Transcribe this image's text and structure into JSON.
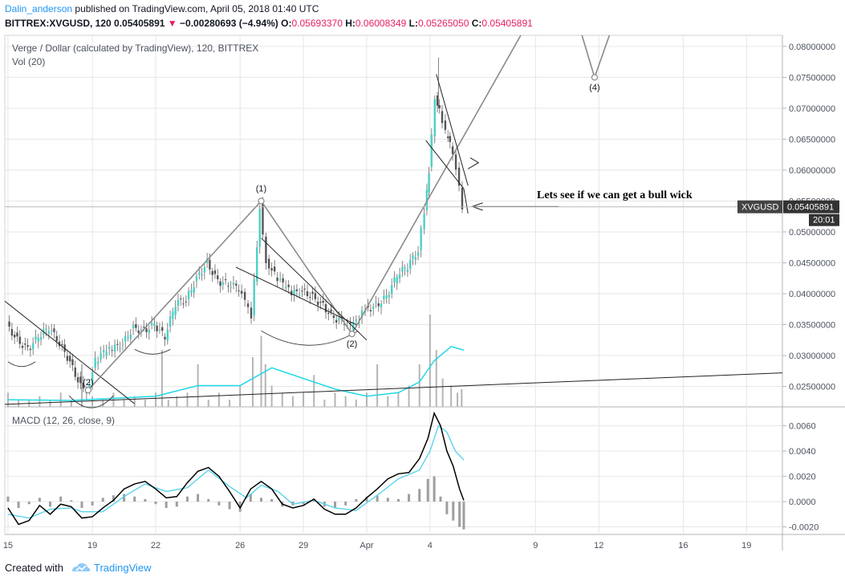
{
  "header": {
    "author": "Dalin_anderson",
    "published": "published on TradingView.com, April 05, 2018 01:40 UTC",
    "symbol": "BITTREX:XVGUSD, 120",
    "last": "0.05405891",
    "arrow": "▼",
    "change": "−0.00280693 (−4.94%)",
    "o_label": "O:",
    "o": "0.05693370",
    "h_label": "H:",
    "h": "0.06008349",
    "l_label": "L:",
    "l": "0.05265050",
    "c_label": "C:",
    "c": "0.05405891"
  },
  "chart_data": {
    "type": "candlestick",
    "title": "Verge / Dollar (calculated by TradingView), 120, BITTREX",
    "volume_label": "Vol (20)",
    "y_ticks": [
      "0.08000000",
      "0.07500000",
      "0.07000000",
      "0.06500000",
      "0.06000000",
      "0.05500000",
      "0.05000000",
      "0.04500000",
      "0.04000000",
      "0.03500000",
      "0.03000000",
      "0.02500000"
    ],
    "ylim": [
      0.0217,
      0.0818
    ],
    "x_ticks": [
      "15",
      "19",
      "22",
      "26",
      "29",
      "Apr",
      "4",
      "9",
      "12",
      "16",
      "19"
    ],
    "x_tick_days": [
      15,
      19,
      22,
      26,
      29,
      32,
      35,
      40,
      43,
      47,
      50
    ],
    "xlim_days": [
      14.85,
      51.7
    ],
    "price_path": [
      [
        15.0,
        0.035
      ],
      [
        15.5,
        0.0325
      ],
      [
        16.0,
        0.031
      ],
      [
        16.5,
        0.033
      ],
      [
        17.0,
        0.0345
      ],
      [
        17.5,
        0.032
      ],
      [
        18.0,
        0.029
      ],
      [
        18.5,
        0.025
      ],
      [
        18.8,
        0.0245
      ],
      [
        19.2,
        0.029
      ],
      [
        19.6,
        0.0305
      ],
      [
        20.0,
        0.031
      ],
      [
        20.5,
        0.032
      ],
      [
        21.0,
        0.0345
      ],
      [
        21.5,
        0.034
      ],
      [
        22.0,
        0.035
      ],
      [
        22.5,
        0.033
      ],
      [
        23.0,
        0.0385
      ],
      [
        23.5,
        0.039
      ],
      [
        24.0,
        0.0425
      ],
      [
        24.5,
        0.045
      ],
      [
        25.0,
        0.042
      ],
      [
        25.5,
        0.0415
      ],
      [
        26.0,
        0.041
      ],
      [
        26.3,
        0.0385
      ],
      [
        26.6,
        0.036
      ],
      [
        27.0,
        0.054
      ],
      [
        27.3,
        0.0455
      ],
      [
        27.7,
        0.043
      ],
      [
        28.1,
        0.0415
      ],
      [
        28.5,
        0.04
      ],
      [
        29.0,
        0.0405
      ],
      [
        29.5,
        0.0395
      ],
      [
        30.0,
        0.038
      ],
      [
        30.5,
        0.036
      ],
      [
        31.0,
        0.0355
      ],
      [
        31.3,
        0.0345
      ],
      [
        31.7,
        0.036
      ],
      [
        32.0,
        0.0375
      ],
      [
        32.5,
        0.038
      ],
      [
        33.0,
        0.0395
      ],
      [
        33.5,
        0.043
      ],
      [
        34.0,
        0.0445
      ],
      [
        34.5,
        0.047
      ],
      [
        34.8,
        0.053
      ],
      [
        35.0,
        0.06
      ],
      [
        35.3,
        0.072
      ],
      [
        35.5,
        0.07
      ],
      [
        35.8,
        0.066
      ],
      [
        36.0,
        0.064
      ],
      [
        36.3,
        0.06
      ],
      [
        36.6,
        0.0541
      ]
    ],
    "volume_bars": [
      [
        15.0,
        0.2
      ],
      [
        15.5,
        0.1
      ],
      [
        16.0,
        0.1
      ],
      [
        16.5,
        0.15
      ],
      [
        17.0,
        0.1
      ],
      [
        17.5,
        0.2
      ],
      [
        18.0,
        0.1
      ],
      [
        18.5,
        0.6
      ],
      [
        19.0,
        0.15
      ],
      [
        19.5,
        0.1
      ],
      [
        20.0,
        0.2
      ],
      [
        20.5,
        0.1
      ],
      [
        21.0,
        0.15
      ],
      [
        21.5,
        0.1
      ],
      [
        22.0,
        0.2
      ],
      [
        22.3,
        0.8
      ],
      [
        22.6,
        0.1
      ],
      [
        23.0,
        0.15
      ],
      [
        23.5,
        0.2
      ],
      [
        24.0,
        0.6
      ],
      [
        24.5,
        0.1
      ],
      [
        25.0,
        0.2
      ],
      [
        25.5,
        0.1
      ],
      [
        26.0,
        0.3
      ],
      [
        26.6,
        0.7
      ],
      [
        27.0,
        1.0
      ],
      [
        27.2,
        0.6
      ],
      [
        27.5,
        0.3
      ],
      [
        28.0,
        0.2
      ],
      [
        28.5,
        0.15
      ],
      [
        29.0,
        0.2
      ],
      [
        29.5,
        0.45
      ],
      [
        30.0,
        0.1
      ],
      [
        30.5,
        0.2
      ],
      [
        31.0,
        0.15
      ],
      [
        31.5,
        0.1
      ],
      [
        32.0,
        0.2
      ],
      [
        32.5,
        0.6
      ],
      [
        33.0,
        0.15
      ],
      [
        33.5,
        0.2
      ],
      [
        34.0,
        0.3
      ],
      [
        34.5,
        0.6
      ],
      [
        35.0,
        1.3
      ],
      [
        35.3,
        0.8
      ],
      [
        35.6,
        0.4
      ],
      [
        36.0,
        0.3
      ],
      [
        36.3,
        0.2
      ],
      [
        36.5,
        0.25
      ]
    ],
    "volume_ma": [
      [
        15,
        0.1
      ],
      [
        18,
        0.09
      ],
      [
        20,
        0.12
      ],
      [
        22,
        0.15
      ],
      [
        24,
        0.3
      ],
      [
        26,
        0.3
      ],
      [
        27.5,
        0.55
      ],
      [
        29,
        0.4
      ],
      [
        30.5,
        0.25
      ],
      [
        32,
        0.15
      ],
      [
        33.5,
        0.2
      ],
      [
        34.5,
        0.35
      ],
      [
        35.2,
        0.65
      ],
      [
        36.0,
        0.85
      ],
      [
        36.6,
        0.8
      ]
    ],
    "trend_lines": [
      {
        "from": [
          14.85,
          0.0388
        ],
        "to": [
          21.0,
          0.0222
        ]
      },
      {
        "from": [
          14.85,
          0.0221
        ],
        "to": [
          51.7,
          0.0272
        ]
      },
      {
        "from": [
          18.8,
          0.0244
        ],
        "to": [
          27.0,
          0.055
        ]
      },
      {
        "from": [
          27.0,
          0.055
        ],
        "to": [
          31.3,
          0.0335
        ]
      },
      {
        "from": [
          31.3,
          0.0335
        ],
        "to": [
          39.3,
          0.0818
        ]
      },
      {
        "from": [
          27.0,
          0.049
        ],
        "to": [
          32.0,
          0.0325
        ]
      },
      {
        "from": [
          25.8,
          0.0443
        ],
        "to": [
          31.5,
          0.035
        ]
      },
      {
        "from": [
          35.3,
          0.0755
        ],
        "to": [
          36.8,
          0.0575
        ]
      },
      {
        "from": [
          34.8,
          0.0648
        ],
        "to": [
          36.6,
          0.057
        ]
      },
      {
        "from": [
          36.6,
          0.057
        ],
        "to": [
          36.8,
          0.053
        ]
      }
    ],
    "pattern_labels": [
      {
        "text": "(1)",
        "at": [
          27.0,
          0.055
        ],
        "dy": -12
      },
      {
        "text": "(2)",
        "at": [
          31.3,
          0.0335
        ],
        "dy": 16
      },
      {
        "text": "(2)",
        "at": [
          18.8,
          0.0244
        ],
        "dy": -6
      },
      {
        "text": "(4)",
        "at": [
          42.8,
          0.075
        ],
        "dy": 16
      }
    ],
    "annotation": "Lets see if we can get a bull wick",
    "price_label": {
      "name": "XVGUSD",
      "value": "0.05405891",
      "countdown": "20:01",
      "price": 0.05405891
    },
    "macd": {
      "title": "MACD (12, 26, close, 9)",
      "y_ticks": [
        "0.0060",
        "0.0040",
        "0.0020",
        "0.0000",
        "-0.0020"
      ],
      "ylim": [
        -0.0026,
        0.0075
      ],
      "macd_line": [
        [
          15,
          -0.0005
        ],
        [
          15.5,
          -0.0018
        ],
        [
          16.0,
          -0.0015
        ],
        [
          16.5,
          -0.0003
        ],
        [
          17.0,
          -0.001
        ],
        [
          17.5,
          -0.0002
        ],
        [
          18.0,
          -0.0004
        ],
        [
          18.5,
          -0.0013
        ],
        [
          19.0,
          -0.0012
        ],
        [
          19.5,
          -0.0005
        ],
        [
          20.0,
          0.0001
        ],
        [
          20.5,
          0.001
        ],
        [
          21.0,
          0.0014
        ],
        [
          21.5,
          0.0016
        ],
        [
          22.0,
          0.001
        ],
        [
          22.5,
          0.0003
        ],
        [
          23.0,
          0.0004
        ],
        [
          23.5,
          0.0015
        ],
        [
          24.0,
          0.0024
        ],
        [
          24.5,
          0.0027
        ],
        [
          25.0,
          0.002
        ],
        [
          25.5,
          0.0008
        ],
        [
          26.0,
          -0.0005
        ],
        [
          26.5,
          0.001
        ],
        [
          27.0,
          0.0016
        ],
        [
          27.5,
          0.001
        ],
        [
          28.0,
          -0.0002
        ],
        [
          28.5,
          -0.0005
        ],
        [
          29.0,
          -0.0003
        ],
        [
          29.5,
          0.0002
        ],
        [
          30.0,
          -0.0006
        ],
        [
          30.5,
          -0.001
        ],
        [
          31.0,
          -0.001
        ],
        [
          31.5,
          -0.0005
        ],
        [
          32.0,
          0.0003
        ],
        [
          32.5,
          0.001
        ],
        [
          33.0,
          0.0018
        ],
        [
          33.5,
          0.0022
        ],
        [
          34.0,
          0.0023
        ],
        [
          34.5,
          0.0034
        ],
        [
          34.9,
          0.005
        ],
        [
          35.2,
          0.007
        ],
        [
          35.5,
          0.006
        ],
        [
          35.8,
          0.004
        ],
        [
          36.1,
          0.0028
        ],
        [
          36.4,
          0.001
        ],
        [
          36.6,
          0.0001
        ]
      ],
      "signal_line": [
        [
          15,
          -0.001
        ],
        [
          16,
          -0.0013
        ],
        [
          17,
          -0.0006
        ],
        [
          18,
          -0.0005
        ],
        [
          18.5,
          -0.0008
        ],
        [
          19.5,
          -0.0008
        ],
        [
          20.5,
          0.0004
        ],
        [
          21.5,
          0.0014
        ],
        [
          22.5,
          0.0008
        ],
        [
          23.5,
          0.0011
        ],
        [
          24.5,
          0.0025
        ],
        [
          25.5,
          0.0012
        ],
        [
          26.3,
          0.0003
        ],
        [
          27.0,
          0.0013
        ],
        [
          27.8,
          0.0008
        ],
        [
          28.5,
          -0.0002
        ],
        [
          29.5,
          0.0001
        ],
        [
          30.5,
          -0.0005
        ],
        [
          31.5,
          -0.0007
        ],
        [
          32.5,
          0.0005
        ],
        [
          33.5,
          0.0018
        ],
        [
          34.5,
          0.0025
        ],
        [
          35.0,
          0.004
        ],
        [
          35.4,
          0.006
        ],
        [
          35.8,
          0.0055
        ],
        [
          36.2,
          0.004
        ],
        [
          36.6,
          0.0033
        ]
      ],
      "histogram": [
        [
          15.0,
          0.0004
        ],
        [
          15.5,
          -0.0005
        ],
        [
          16.0,
          -0.0002
        ],
        [
          16.5,
          0.0003
        ],
        [
          17.0,
          -0.0004
        ],
        [
          17.5,
          0.0004
        ],
        [
          18.0,
          0.0001
        ],
        [
          18.5,
          -0.0005
        ],
        [
          19.0,
          -0.0003
        ],
        [
          19.5,
          0.0003
        ],
        [
          20.0,
          0.0005
        ],
        [
          20.5,
          0.0006
        ],
        [
          21.0,
          0.0004
        ],
        [
          21.5,
          0.0002
        ],
        [
          22.0,
          -0.0002
        ],
        [
          22.5,
          -0.0005
        ],
        [
          23.0,
          -0.0004
        ],
        [
          23.5,
          0.0004
        ],
        [
          24.0,
          0.0006
        ],
        [
          24.5,
          0.0002
        ],
        [
          25.0,
          -0.0003
        ],
        [
          25.5,
          -0.0006
        ],
        [
          26.0,
          -0.0008
        ],
        [
          26.5,
          0.0006
        ],
        [
          27.0,
          0.0003
        ],
        [
          27.5,
          0.0002
        ],
        [
          28.0,
          -0.0004
        ],
        [
          28.5,
          -0.0003
        ],
        [
          29.0,
          -0.0002
        ],
        [
          29.5,
          0.0002
        ],
        [
          30.0,
          -0.0004
        ],
        [
          30.5,
          -0.0005
        ],
        [
          31.0,
          -0.0003
        ],
        [
          31.5,
          0.0002
        ],
        [
          32.0,
          0.0004
        ],
        [
          32.5,
          0.0005
        ],
        [
          33.0,
          0.0003
        ],
        [
          33.5,
          0.0002
        ],
        [
          34.0,
          0.0006
        ],
        [
          34.5,
          0.001
        ],
        [
          34.9,
          0.0018
        ],
        [
          35.2,
          0.002
        ],
        [
          35.5,
          0.0004
        ],
        [
          35.8,
          -0.001
        ],
        [
          36.1,
          -0.0015
        ],
        [
          36.4,
          -0.002
        ],
        [
          36.6,
          -0.0022
        ]
      ]
    }
  },
  "footer": {
    "created": "Created with",
    "brand": "TradingView"
  },
  "colors": {
    "up": "#53b987",
    "down": "#eb4d5c",
    "candle_up": "#4dd0c7",
    "candle_down": "#555555",
    "vol_ma": "#22d8e6",
    "macd": "#000000",
    "signal": "#5ad4ec",
    "hist": "#9e9e9e",
    "grid": "#e6e6e6",
    "axis_text": "#4c525e",
    "drawing": "#8a8a8a"
  }
}
